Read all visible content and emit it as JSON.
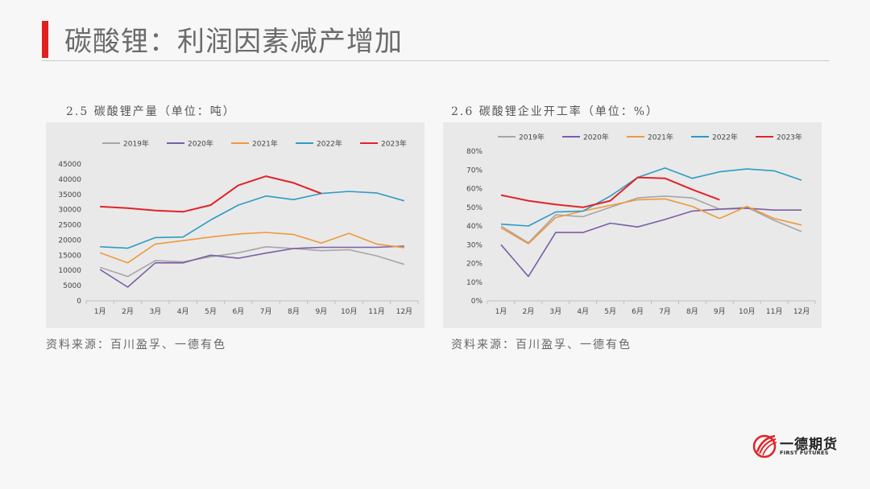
{
  "header": {
    "title": "碳酸锂：利润因素减产增加"
  },
  "colors": {
    "accent": "#e02020",
    "series": {
      "2019年": "#a6a6a6",
      "2020年": "#7a5fa6",
      "2021年": "#f0983c",
      "2022年": "#2e9bc4",
      "2023年": "#e0232a"
    }
  },
  "left": {
    "caption": "2.5 碳酸锂产量（单位：吨）",
    "source": "资料来源：百川盈孚、一德有色"
  },
  "right": {
    "caption": "2.6 碳酸锂企业开工率（单位：%）",
    "source": "资料来源：百川盈孚、一德有色"
  },
  "logo": {
    "name_cn": "一德期货",
    "name_en": "FIRST FUTURES"
  },
  "chart_data": [
    {
      "type": "line",
      "title": "",
      "categories": [
        "1月",
        "2月",
        "3月",
        "4月",
        "5月",
        "6月",
        "7月",
        "8月",
        "9月",
        "10月",
        "11月",
        "12月"
      ],
      "ylim": [
        0,
        45000
      ],
      "yticks": [
        0,
        5000,
        10000,
        15000,
        20000,
        25000,
        30000,
        35000,
        40000,
        45000
      ],
      "ytick_labels": [
        "0",
        "5000",
        "10000",
        "15000",
        "20000",
        "25000",
        "30000",
        "35000",
        "40000",
        "45000"
      ],
      "legend": "top",
      "grid": false,
      "series": [
        {
          "name": "2019年",
          "values": [
            11000,
            8000,
            13200,
            12800,
            14500,
            15800,
            17800,
            17200,
            16500,
            16800,
            14800,
            12000
          ]
        },
        {
          "name": "2020年",
          "values": [
            10300,
            4500,
            12500,
            12500,
            15000,
            14000,
            15700,
            17200,
            17600,
            17600,
            17600,
            18000
          ]
        },
        {
          "name": "2021年",
          "values": [
            15800,
            12500,
            18700,
            19800,
            21000,
            22000,
            22500,
            21800,
            19000,
            22200,
            18700,
            17500
          ]
        },
        {
          "name": "2022年",
          "values": [
            17800,
            17300,
            20800,
            21000,
            26600,
            31500,
            34500,
            33300,
            35300,
            36000,
            35500,
            32900
          ]
        },
        {
          "name": "2023年",
          "values": [
            31000,
            30500,
            29700,
            29300,
            31500,
            38000,
            41000,
            38800,
            35300,
            null,
            null,
            null
          ]
        }
      ]
    },
    {
      "type": "line",
      "title": "",
      "categories": [
        "1月",
        "2月",
        "3月",
        "4月",
        "5月",
        "6月",
        "7月",
        "8月",
        "9月",
        "10月",
        "11月",
        "12月"
      ],
      "ylim": [
        0,
        80
      ],
      "yticks": [
        0,
        10,
        20,
        30,
        40,
        50,
        60,
        70,
        80
      ],
      "ytick_labels": [
        "0%",
        "10%",
        "20%",
        "30%",
        "40%",
        "50%",
        "60%",
        "70%",
        "80%"
      ],
      "legend": "top",
      "grid": false,
      "series": [
        {
          "name": "2019年",
          "values": [
            40,
            31,
            46,
            45,
            50,
            55,
            56,
            55,
            49,
            50,
            43,
            37
          ]
        },
        {
          "name": "2020年",
          "values": [
            30,
            13,
            36.5,
            36.5,
            41.5,
            39.5,
            43.5,
            48,
            49,
            49.5,
            48.5,
            48.5
          ]
        },
        {
          "name": "2021年",
          "values": [
            39,
            30.5,
            44.5,
            48,
            51,
            54,
            54.5,
            50.5,
            44,
            50.5,
            44,
            40.5
          ]
        },
        {
          "name": "2022年",
          "values": [
            41,
            40,
            47.5,
            48,
            56,
            66,
            71,
            65.5,
            69,
            70.5,
            69.5,
            64.5
          ]
        },
        {
          "name": "2023年",
          "values": [
            56.5,
            53.5,
            51.5,
            50,
            53.5,
            66,
            65.5,
            59.5,
            54,
            null,
            null,
            null
          ]
        }
      ]
    }
  ]
}
